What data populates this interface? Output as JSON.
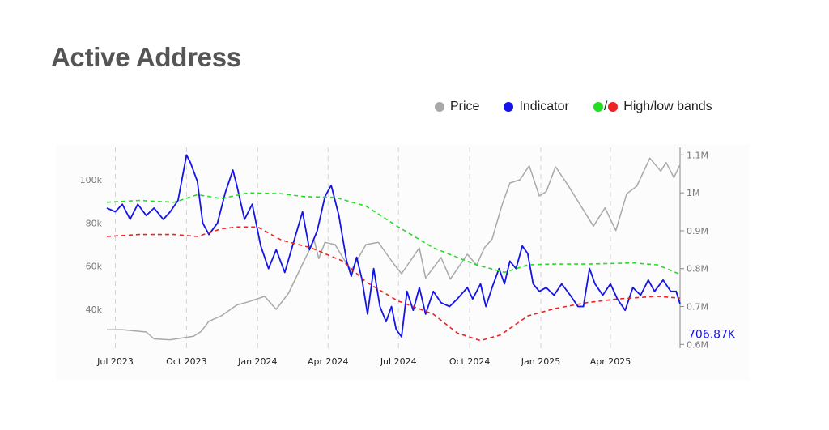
{
  "title": "Active Address",
  "legend": {
    "price": {
      "label": "Price",
      "color": "#a9a9a9"
    },
    "indicator": {
      "label": "Indicator",
      "color": "#1414e6"
    },
    "bands": {
      "label": "High/low bands",
      "high_color": "#22dd22",
      "low_color": "#ee2222",
      "separator": "/"
    }
  },
  "chart_data": {
    "type": "line",
    "x_ticks": [
      "Jul 2023",
      "Oct 2023",
      "Jan 2024",
      "Apr 2024",
      "Jul 2024",
      "Oct 2024",
      "Jan 2025",
      "Apr 2025"
    ],
    "x_range": [
      "2023-06-20",
      "2025-06-30"
    ],
    "y_left": {
      "range": [
        22000,
        115000
      ],
      "ticks": [
        40000,
        60000,
        80000,
        100000
      ],
      "tick_labels": [
        "40k",
        "60k",
        "80k",
        "100k"
      ]
    },
    "y_right": {
      "range": [
        0.59,
        1.12
      ],
      "ticks": [
        0.6,
        0.7,
        0.8,
        0.9,
        1.0,
        1.1
      ],
      "tick_labels": [
        "0.6M",
        "0.7M",
        "0.8M",
        "0.9M",
        "1M",
        "1.1M"
      ]
    },
    "grid": {
      "vertical": true,
      "style": "dashed"
    },
    "last_value_label": "706.87K",
    "series": [
      {
        "name": "Price",
        "axis": "left",
        "color": "#a9a9a9",
        "points": [
          [
            "2023-06-20",
            30500
          ],
          [
            "2023-07-10",
            30600
          ],
          [
            "2023-08-10",
            29500
          ],
          [
            "2023-08-20",
            26300
          ],
          [
            "2023-09-10",
            25900
          ],
          [
            "2023-10-10",
            27500
          ],
          [
            "2023-10-20",
            29800
          ],
          [
            "2023-10-30",
            34500
          ],
          [
            "2023-11-15",
            37000
          ],
          [
            "2023-12-05",
            42000
          ],
          [
            "2023-12-20",
            43500
          ],
          [
            "2024-01-10",
            46000
          ],
          [
            "2024-01-25",
            40000
          ],
          [
            "2024-02-10",
            47500
          ],
          [
            "2024-02-28",
            61000
          ],
          [
            "2024-03-14",
            72000
          ],
          [
            "2024-03-20",
            63500
          ],
          [
            "2024-03-28",
            71000
          ],
          [
            "2024-04-10",
            70000
          ],
          [
            "2024-04-20",
            64000
          ],
          [
            "2024-05-01",
            58000
          ],
          [
            "2024-05-20",
            70000
          ],
          [
            "2024-06-05",
            71000
          ],
          [
            "2024-06-25",
            61000
          ],
          [
            "2024-07-05",
            56500
          ],
          [
            "2024-07-28",
            68500
          ],
          [
            "2024-08-05",
            54500
          ],
          [
            "2024-08-25",
            64000
          ],
          [
            "2024-09-06",
            54000
          ],
          [
            "2024-09-28",
            65500
          ],
          [
            "2024-10-10",
            60500
          ],
          [
            "2024-10-20",
            68500
          ],
          [
            "2024-10-30",
            72500
          ],
          [
            "2024-11-12",
            88500
          ],
          [
            "2024-11-22",
            98500
          ],
          [
            "2024-12-05",
            100000
          ],
          [
            "2024-12-17",
            106500
          ],
          [
            "2024-12-30",
            92500
          ],
          [
            "2025-01-08",
            94500
          ],
          [
            "2025-01-20",
            106000
          ],
          [
            "2025-02-05",
            97500
          ],
          [
            "2025-02-25",
            86000
          ],
          [
            "2025-03-10",
            78500
          ],
          [
            "2025-03-25",
            87000
          ],
          [
            "2025-04-08",
            76500
          ],
          [
            "2025-04-22",
            93500
          ],
          [
            "2025-05-05",
            97000
          ],
          [
            "2025-05-22",
            110000
          ],
          [
            "2025-06-05",
            104000
          ],
          [
            "2025-06-12",
            108000
          ],
          [
            "2025-06-22",
            101000
          ],
          [
            "2025-06-30",
            107000
          ]
        ]
      },
      {
        "name": "Indicator",
        "axis": "right",
        "color": "#1414e6",
        "points": [
          [
            "2023-06-20",
            0.96
          ],
          [
            "2023-07-01",
            0.95
          ],
          [
            "2023-07-10",
            0.97
          ],
          [
            "2023-07-20",
            0.93
          ],
          [
            "2023-07-30",
            0.97
          ],
          [
            "2023-08-10",
            0.94
          ],
          [
            "2023-08-20",
            0.96
          ],
          [
            "2023-09-01",
            0.93
          ],
          [
            "2023-09-10",
            0.95
          ],
          [
            "2023-09-20",
            0.98
          ],
          [
            "2023-10-01",
            1.1
          ],
          [
            "2023-10-06",
            1.08
          ],
          [
            "2023-10-15",
            1.03
          ],
          [
            "2023-10-22",
            0.92
          ],
          [
            "2023-10-30",
            0.89
          ],
          [
            "2023-11-10",
            0.92
          ],
          [
            "2023-11-20",
            1.0
          ],
          [
            "2023-11-30",
            1.06
          ],
          [
            "2023-12-05",
            1.02
          ],
          [
            "2023-12-15",
            0.93
          ],
          [
            "2023-12-25",
            0.97
          ],
          [
            "2024-01-05",
            0.86
          ],
          [
            "2024-01-15",
            0.8
          ],
          [
            "2024-01-25",
            0.85
          ],
          [
            "2024-02-05",
            0.79
          ],
          [
            "2024-02-15",
            0.86
          ],
          [
            "2024-02-28",
            0.95
          ],
          [
            "2024-03-08",
            0.85
          ],
          [
            "2024-03-18",
            0.9
          ],
          [
            "2024-03-28",
            0.99
          ],
          [
            "2024-04-05",
            1.02
          ],
          [
            "2024-04-15",
            0.94
          ],
          [
            "2024-04-25",
            0.82
          ],
          [
            "2024-05-01",
            0.78
          ],
          [
            "2024-05-08",
            0.83
          ],
          [
            "2024-05-15",
            0.77
          ],
          [
            "2024-05-22",
            0.68
          ],
          [
            "2024-05-30",
            0.8
          ],
          [
            "2024-06-07",
            0.7
          ],
          [
            "2024-06-15",
            0.66
          ],
          [
            "2024-06-22",
            0.7
          ],
          [
            "2024-06-28",
            0.64
          ],
          [
            "2024-07-05",
            0.62
          ],
          [
            "2024-07-12",
            0.74
          ],
          [
            "2024-07-20",
            0.69
          ],
          [
            "2024-07-28",
            0.75
          ],
          [
            "2024-08-05",
            0.68
          ],
          [
            "2024-08-15",
            0.74
          ],
          [
            "2024-08-25",
            0.71
          ],
          [
            "2024-09-05",
            0.7
          ],
          [
            "2024-09-15",
            0.72
          ],
          [
            "2024-09-28",
            0.75
          ],
          [
            "2024-10-05",
            0.72
          ],
          [
            "2024-10-15",
            0.76
          ],
          [
            "2024-10-22",
            0.7
          ],
          [
            "2024-10-30",
            0.75
          ],
          [
            "2024-11-08",
            0.8
          ],
          [
            "2024-11-15",
            0.76
          ],
          [
            "2024-11-22",
            0.82
          ],
          [
            "2024-11-30",
            0.8
          ],
          [
            "2024-12-08",
            0.86
          ],
          [
            "2024-12-15",
            0.84
          ],
          [
            "2024-12-22",
            0.76
          ],
          [
            "2024-12-30",
            0.74
          ],
          [
            "2025-01-08",
            0.75
          ],
          [
            "2025-01-18",
            0.73
          ],
          [
            "2025-01-28",
            0.76
          ],
          [
            "2025-02-08",
            0.73
          ],
          [
            "2025-02-18",
            0.7
          ],
          [
            "2025-02-25",
            0.7
          ],
          [
            "2025-03-05",
            0.8
          ],
          [
            "2025-03-12",
            0.76
          ],
          [
            "2025-03-22",
            0.73
          ],
          [
            "2025-04-01",
            0.76
          ],
          [
            "2025-04-10",
            0.72
          ],
          [
            "2025-04-20",
            0.69
          ],
          [
            "2025-04-30",
            0.75
          ],
          [
            "2025-05-10",
            0.73
          ],
          [
            "2025-05-20",
            0.77
          ],
          [
            "2025-05-28",
            0.74
          ],
          [
            "2025-06-08",
            0.77
          ],
          [
            "2025-06-18",
            0.74
          ],
          [
            "2025-06-25",
            0.74
          ],
          [
            "2025-06-30",
            0.707
          ]
        ]
      },
      {
        "name": "High band",
        "axis": "right",
        "color": "#22dd22",
        "dashed": true,
        "points": [
          [
            "2023-06-20",
            0.975
          ],
          [
            "2023-08-01",
            0.98
          ],
          [
            "2023-09-15",
            0.975
          ],
          [
            "2023-10-15",
            0.995
          ],
          [
            "2023-11-15",
            0.985
          ],
          [
            "2023-12-20",
            1.0
          ],
          [
            "2024-01-30",
            0.998
          ],
          [
            "2024-03-01",
            0.99
          ],
          [
            "2024-04-10",
            0.988
          ],
          [
            "2024-05-20",
            0.965
          ],
          [
            "2024-07-01",
            0.91
          ],
          [
            "2024-08-15",
            0.855
          ],
          [
            "2024-09-15",
            0.83
          ],
          [
            "2024-10-10",
            0.81
          ],
          [
            "2024-11-15",
            0.79
          ],
          [
            "2024-12-15",
            0.81
          ],
          [
            "2025-01-15",
            0.812
          ],
          [
            "2025-03-01",
            0.812
          ],
          [
            "2025-05-01",
            0.815
          ],
          [
            "2025-06-01",
            0.81
          ],
          [
            "2025-06-30",
            0.785
          ]
        ]
      },
      {
        "name": "Low band",
        "axis": "right",
        "color": "#ee2222",
        "dashed": true,
        "points": [
          [
            "2023-06-20",
            0.885
          ],
          [
            "2023-08-01",
            0.89
          ],
          [
            "2023-09-15",
            0.89
          ],
          [
            "2023-10-15",
            0.885
          ],
          [
            "2023-11-15",
            0.905
          ],
          [
            "2023-12-05",
            0.91
          ],
          [
            "2024-01-01",
            0.91
          ],
          [
            "2024-02-01",
            0.875
          ],
          [
            "2024-03-10",
            0.855
          ],
          [
            "2024-04-20",
            0.82
          ],
          [
            "2024-05-20",
            0.765
          ],
          [
            "2024-06-30",
            0.715
          ],
          [
            "2024-08-15",
            0.68
          ],
          [
            "2024-09-15",
            0.63
          ],
          [
            "2024-10-15",
            0.61
          ],
          [
            "2024-11-10",
            0.625
          ],
          [
            "2024-12-15",
            0.675
          ],
          [
            "2025-01-20",
            0.695
          ],
          [
            "2025-03-01",
            0.71
          ],
          [
            "2025-04-10",
            0.72
          ],
          [
            "2025-06-01",
            0.727
          ],
          [
            "2025-06-30",
            0.722
          ]
        ]
      }
    ]
  }
}
